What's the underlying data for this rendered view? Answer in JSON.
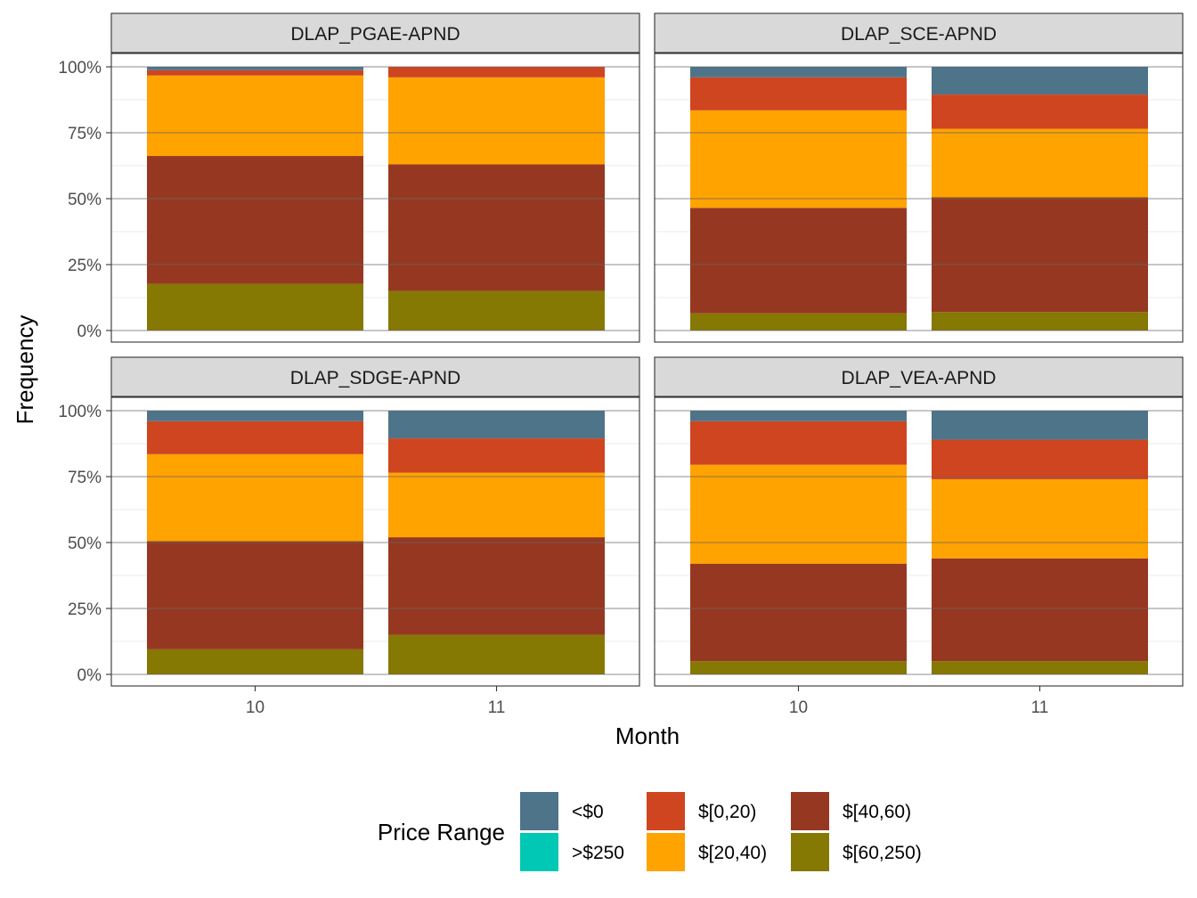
{
  "chart_data": {
    "type": "bar",
    "stacked": true,
    "x_axis_title": "Month",
    "y_axis_title": "Frequency",
    "categories": [
      "10",
      "11"
    ],
    "y_ticks": [
      "0%",
      "25%",
      "50%",
      "75%",
      "100%"
    ],
    "ylim": [
      0,
      1
    ],
    "legend": {
      "title": "Price Range",
      "position": "bottom",
      "entries": [
        {
          "label": "<$0",
          "color": "#4e748a"
        },
        {
          "label": ">$250",
          "color": "#00c8b4"
        },
        {
          "label": "$[0,20)",
          "color": "#cf4520"
        },
        {
          "label": "$[20,40)",
          "color": "#ffa300"
        },
        {
          "label": "$[40,60)",
          "color": "#963821"
        },
        {
          "label": "$[60,250)",
          "color": "#857803"
        }
      ]
    },
    "stack_order_bottom_to_top": [
      "$[60,250)",
      "$[40,60)",
      "$[20,40)",
      "$[0,20)",
      ">$250",
      "<$0"
    ],
    "panels": [
      {
        "title": "DLAP_PGAE-APND",
        "bars": [
          {
            "month": "10",
            "values": {
              "<$0": 0.013,
              ">$250": 0.0,
              "$[0,20)": 0.02,
              "$[20,40)": 0.305,
              "$[40,60)": 0.485,
              "$[60,250)": 0.177
            }
          },
          {
            "month": "11",
            "values": {
              "<$0": 0.0,
              ">$250": 0.0,
              "$[0,20)": 0.04,
              "$[20,40)": 0.33,
              "$[40,60)": 0.48,
              "$[60,250)": 0.15
            }
          }
        ]
      },
      {
        "title": "DLAP_SCE-APND",
        "bars": [
          {
            "month": "10",
            "values": {
              "<$0": 0.04,
              ">$250": 0.0,
              "$[0,20)": 0.125,
              "$[20,40)": 0.37,
              "$[40,60)": 0.4,
              "$[60,250)": 0.065
            }
          },
          {
            "month": "11",
            "values": {
              "<$0": 0.105,
              ">$250": 0.0,
              "$[0,20)": 0.13,
              "$[20,40)": 0.26,
              "$[40,60)": 0.435,
              "$[60,250)": 0.07
            }
          }
        ]
      },
      {
        "title": "DLAP_SDGE-APND",
        "bars": [
          {
            "month": "10",
            "values": {
              "<$0": 0.04,
              ">$250": 0.0,
              "$[0,20)": 0.125,
              "$[20,40)": 0.33,
              "$[40,60)": 0.41,
              "$[60,250)": 0.095
            }
          },
          {
            "month": "11",
            "values": {
              "<$0": 0.105,
              ">$250": 0.0,
              "$[0,20)": 0.13,
              "$[20,40)": 0.245,
              "$[40,60)": 0.37,
              "$[60,250)": 0.15
            }
          }
        ]
      },
      {
        "title": "DLAP_VEA-APND",
        "bars": [
          {
            "month": "10",
            "values": {
              "<$0": 0.04,
              ">$250": 0.0,
              "$[0,20)": 0.165,
              "$[20,40)": 0.375,
              "$[40,60)": 0.37,
              "$[60,250)": 0.05
            }
          },
          {
            "month": "11",
            "values": {
              "<$0": 0.11,
              ">$250": 0.0,
              "$[0,20)": 0.15,
              "$[20,40)": 0.3,
              "$[40,60)": 0.39,
              "$[60,250)": 0.05
            }
          }
        ]
      }
    ]
  }
}
